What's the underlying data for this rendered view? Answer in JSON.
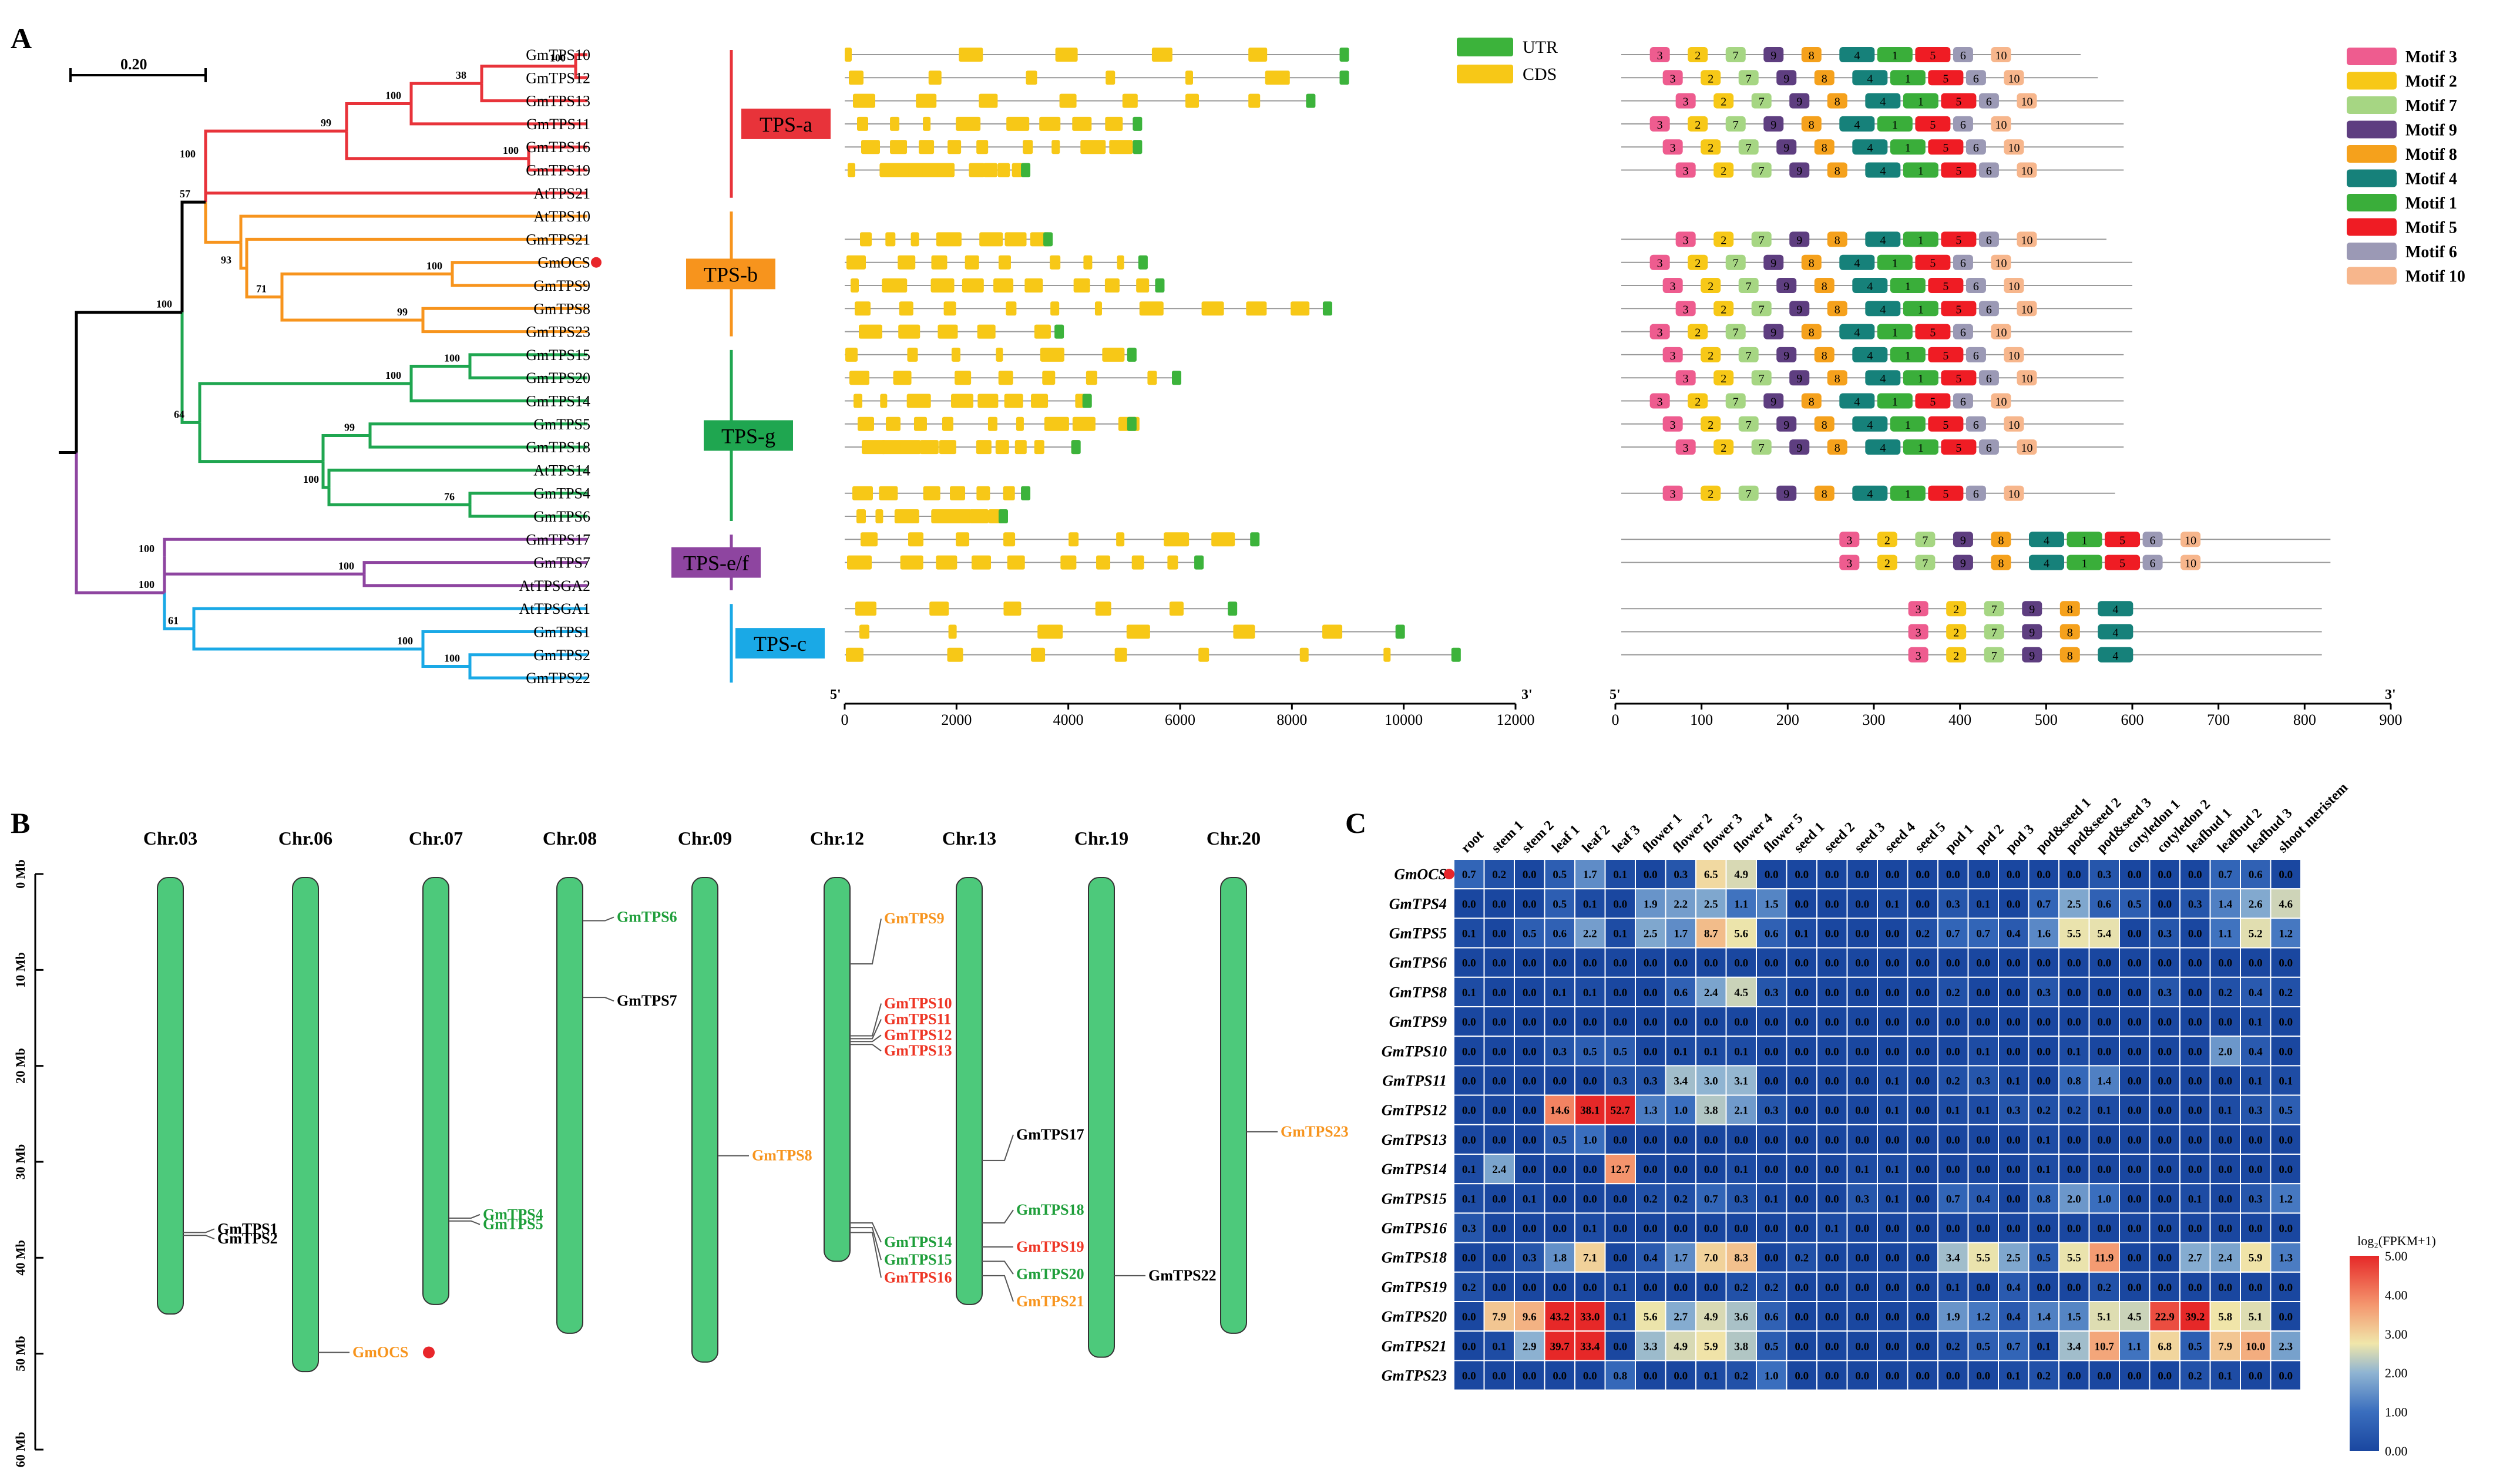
{
  "panels": {
    "a": "A",
    "b": "B",
    "c": "C"
  },
  "scale_bar": "0.20",
  "tree": {
    "leaves": [
      "GmTPS10",
      "GmTPS12",
      "GmTPS13",
      "GmTPS11",
      "GmTPS16",
      "GmTPS19",
      "AtTPS21",
      "AtTPS10",
      "GmTPS21",
      "GmOCS",
      "GmTPS9",
      "GmTPS8",
      "GmTPS23",
      "GmTPS15",
      "GmTPS20",
      "GmTPS14",
      "GmTPS5",
      "GmTPS18",
      "AtTPS14",
      "GmTPS4",
      "GmTPS6",
      "GmTPS17",
      "GmTPS7",
      "AtTPSGA2",
      "AtTPSGA1",
      "GmTPS1",
      "GmTPS2",
      "GmTPS22"
    ],
    "bootstraps": [
      "100",
      "38",
      "100",
      "99",
      "100",
      "100",
      "57",
      "93",
      "100",
      "71",
      "99",
      "100",
      "100",
      "100",
      "99",
      "64",
      "100",
      "76",
      "100",
      "100",
      "61",
      "100",
      "100",
      "100"
    ],
    "clades": [
      {
        "label": "TPS-a",
        "color": "#e8333a"
      },
      {
        "label": "TPS-b",
        "color": "#f7941d"
      },
      {
        "label": "TPS-g",
        "color": "#1fa650"
      },
      {
        "label": "TPS-e/f",
        "color": "#8e45a0"
      },
      {
        "label": "TPS-c",
        "color": "#1aa9e6"
      }
    ]
  },
  "gene_structure": {
    "legend": [
      {
        "label": "UTR",
        "color": "#3cb33b"
      },
      {
        "label": "CDS",
        "color": "#f7c817"
      }
    ],
    "axis_ticks": [
      "0",
      "2000",
      "4000",
      "6000",
      "8000",
      "10000",
      "12000"
    ],
    "end5": "5'",
    "end3": "3'"
  },
  "motifs": {
    "legend": [
      {
        "label": "Motif 3",
        "color": "#ee5c8f"
      },
      {
        "label": "Motif 2",
        "color": "#f7c817"
      },
      {
        "label": "Motif 7",
        "color": "#a6d683"
      },
      {
        "label": "Motif 9",
        "color": "#5e3e80"
      },
      {
        "label": "Motif 8",
        "color": "#f5a11c"
      },
      {
        "label": "Motif 4",
        "color": "#16817a"
      },
      {
        "label": "Motif 1",
        "color": "#3aae3a"
      },
      {
        "label": "Motif 5",
        "color": "#ef1c24"
      },
      {
        "label": "Motif 6",
        "color": "#9b99b5"
      },
      {
        "label": "Motif 10",
        "color": "#f7b68c"
      }
    ],
    "axis_ticks": [
      "0",
      "100",
      "200",
      "300",
      "400",
      "500",
      "600",
      "700",
      "800",
      "900"
    ],
    "end5": "5'",
    "end3": "3'"
  },
  "chromosomes": {
    "axis_ticks": [
      "0 Mb",
      "10 Mb",
      "20 Mb",
      "30 Mb",
      "40 Mb",
      "50 Mb",
      "60 Mb"
    ],
    "chrom_color": "#4dc97b",
    "list": [
      {
        "name": "Chr.03",
        "length_mb": 45.5,
        "genes": [
          {
            "name": "GmTPS1",
            "pos_mb": 37.0,
            "clade": "c"
          },
          {
            "name": "GmTPS2",
            "pos_mb": 37.3,
            "clade": "c"
          }
        ]
      },
      {
        "name": "Chr.06",
        "length_mb": 51.5,
        "genes": [
          {
            "name": "GmOCS",
            "pos_mb": 49.5,
            "clade": "b",
            "mark": true
          }
        ]
      },
      {
        "name": "Chr.07",
        "length_mb": 44.5,
        "genes": [
          {
            "name": "GmTPS4",
            "pos_mb": 35.5,
            "clade": "g"
          },
          {
            "name": "GmTPS5",
            "pos_mb": 35.8,
            "clade": "g"
          }
        ]
      },
      {
        "name": "Chr.08",
        "length_mb": 47.5,
        "genes": [
          {
            "name": "GmTPS6",
            "pos_mb": 4.5,
            "clade": "g"
          },
          {
            "name": "GmTPS7",
            "pos_mb": 12.5,
            "clade": "ef"
          }
        ]
      },
      {
        "name": "Chr.09",
        "length_mb": 50.5,
        "genes": [
          {
            "name": "GmTPS8",
            "pos_mb": 29.0,
            "clade": "b"
          }
        ]
      },
      {
        "name": "Chr.12",
        "length_mb": 40.0,
        "genes": [
          {
            "name": "GmTPS9",
            "pos_mb": 9.0,
            "clade": "b"
          },
          {
            "name": "GmTPS10",
            "pos_mb": 16.5,
            "clade": "a"
          },
          {
            "name": "GmTPS11",
            "pos_mb": 16.8,
            "clade": "a"
          },
          {
            "name": "GmTPS12",
            "pos_mb": 17.1,
            "clade": "a"
          },
          {
            "name": "GmTPS13",
            "pos_mb": 17.4,
            "clade": "a"
          },
          {
            "name": "GmTPS14",
            "pos_mb": 36.0,
            "clade": "g"
          },
          {
            "name": "GmTPS15",
            "pos_mb": 36.5,
            "clade": "g"
          },
          {
            "name": "GmTPS16",
            "pos_mb": 37.0,
            "clade": "a"
          }
        ]
      },
      {
        "name": "Chr.13",
        "length_mb": 44.5,
        "genes": [
          {
            "name": "GmTPS17",
            "pos_mb": 29.5,
            "clade": "ef"
          },
          {
            "name": "GmTPS18",
            "pos_mb": 36.0,
            "clade": "g"
          },
          {
            "name": "GmTPS19",
            "pos_mb": 38.5,
            "clade": "a"
          },
          {
            "name": "GmTPS20",
            "pos_mb": 40.0,
            "clade": "g"
          },
          {
            "name": "GmTPS21",
            "pos_mb": 41.5,
            "clade": "b"
          }
        ]
      },
      {
        "name": "Chr.19",
        "length_mb": 50.0,
        "genes": [
          {
            "name": "GmTPS22",
            "pos_mb": 41.5,
            "clade": "c"
          }
        ]
      },
      {
        "name": "Chr.20",
        "length_mb": 47.5,
        "genes": [
          {
            "name": "GmTPS23",
            "pos_mb": 26.5,
            "clade": "b"
          }
        ]
      }
    ]
  },
  "chart_data": {
    "type": "heatmap",
    "title": "",
    "columns": [
      "root",
      "stem 1",
      "stem 2",
      "leaf 1",
      "leaf 2",
      "leaf 3",
      "flower 1",
      "flower 2",
      "flower 3",
      "flower 4",
      "flower 5",
      "seed 1",
      "seed 2",
      "seed 3",
      "seed 4",
      "seed 5",
      "pod 1",
      "pod 2",
      "pod 3",
      "pod&seed 1",
      "pod&seed 2",
      "pod&seed 3",
      "cotyledon 1",
      "cotyledon 2",
      "leafbud 1",
      "leafbud 2",
      "leafbud 3",
      "shoot meristem"
    ],
    "rows": [
      "GmOCS",
      "GmTPS4",
      "GmTPS5",
      "GmTPS6",
      "GmTPS8",
      "GmTPS9",
      "GmTPS10",
      "GmTPS11",
      "GmTPS12",
      "GmTPS13",
      "GmTPS14",
      "GmTPS15",
      "GmTPS16",
      "GmTPS18",
      "GmTPS19",
      "GmTPS20",
      "GmTPS21",
      "GmTPS23"
    ],
    "values": [
      [
        0.7,
        0.2,
        0.0,
        0.5,
        1.7,
        0.1,
        0.0,
        0.3,
        6.5,
        4.9,
        0.0,
        0.0,
        0.0,
        0.0,
        0.0,
        0.0,
        0.0,
        0.0,
        0.0,
        0.0,
        0.0,
        0.3,
        0.0,
        0.0,
        0.0,
        0.7,
        0.6,
        0.0
      ],
      [
        0.0,
        0.0,
        0.0,
        0.5,
        0.1,
        0.0,
        1.9,
        2.2,
        2.5,
        1.1,
        1.5,
        0.0,
        0.0,
        0.0,
        0.1,
        0.0,
        0.3,
        0.1,
        0.0,
        0.7,
        2.5,
        0.6,
        0.5,
        0.0,
        0.3,
        1.4,
        2.6,
        4.6
      ],
      [
        0.1,
        0.0,
        0.5,
        0.6,
        2.2,
        0.1,
        2.5,
        1.7,
        8.7,
        5.6,
        0.6,
        0.1,
        0.0,
        0.0,
        0.0,
        0.2,
        0.7,
        0.7,
        0.4,
        1.6,
        5.5,
        5.4,
        0.0,
        0.3,
        0.0,
        1.1,
        5.2,
        1.2
      ],
      [
        0.0,
        0.0,
        0.0,
        0.0,
        0.0,
        0.0,
        0.0,
        0.0,
        0.0,
        0.0,
        0.0,
        0.0,
        0.0,
        0.0,
        0.0,
        0.0,
        0.0,
        0.0,
        0.0,
        0.0,
        0.0,
        0.0,
        0.0,
        0.0,
        0.0,
        0.0,
        0.0,
        0.0
      ],
      [
        0.1,
        0.0,
        0.0,
        0.1,
        0.1,
        0.0,
        0.0,
        0.6,
        2.4,
        4.5,
        0.3,
        0.0,
        0.0,
        0.0,
        0.0,
        0.0,
        0.2,
        0.0,
        0.0,
        0.3,
        0.0,
        0.0,
        0.0,
        0.3,
        0.0,
        0.2,
        0.4,
        0.2
      ],
      [
        0.0,
        0.0,
        0.0,
        0.0,
        0.0,
        0.0,
        0.0,
        0.0,
        0.0,
        0.0,
        0.0,
        0.0,
        0.0,
        0.0,
        0.0,
        0.0,
        0.0,
        0.0,
        0.0,
        0.0,
        0.0,
        0.0,
        0.0,
        0.0,
        0.0,
        0.0,
        0.1,
        0.0
      ],
      [
        0.0,
        0.0,
        0.0,
        0.3,
        0.5,
        0.5,
        0.0,
        0.1,
        0.1,
        0.1,
        0.0,
        0.0,
        0.0,
        0.0,
        0.0,
        0.0,
        0.0,
        0.1,
        0.0,
        0.0,
        0.1,
        0.0,
        0.0,
        0.0,
        0.0,
        2.0,
        0.4,
        0.0
      ],
      [
        0.0,
        0.0,
        0.0,
        0.0,
        0.0,
        0.3,
        0.3,
        3.4,
        3.0,
        3.1,
        0.0,
        0.0,
        0.0,
        0.0,
        0.1,
        0.0,
        0.2,
        0.3,
        0.1,
        0.0,
        0.8,
        1.4,
        0.0,
        0.0,
        0.0,
        0.0,
        0.1,
        0.1
      ],
      [
        0.0,
        0.0,
        0.0,
        14.6,
        38.1,
        52.7,
        1.3,
        1.0,
        3.8,
        2.1,
        0.3,
        0.0,
        0.0,
        0.0,
        0.1,
        0.0,
        0.1,
        0.1,
        0.3,
        0.2,
        0.2,
        0.1,
        0.0,
        0.0,
        0.0,
        0.1,
        0.3,
        0.5
      ],
      [
        0.0,
        0.0,
        0.0,
        0.5,
        1.0,
        0.0,
        0.0,
        0.0,
        0.0,
        0.0,
        0.0,
        0.0,
        0.0,
        0.0,
        0.0,
        0.0,
        0.0,
        0.0,
        0.0,
        0.1,
        0.0,
        0.0,
        0.0,
        0.0,
        0.0,
        0.0,
        0.0,
        0.0
      ],
      [
        0.1,
        2.4,
        0.0,
        0.0,
        0.0,
        12.7,
        0.0,
        0.0,
        0.0,
        0.1,
        0.0,
        0.0,
        0.0,
        0.1,
        0.1,
        0.0,
        0.0,
        0.0,
        0.0,
        0.1,
        0.0,
        0.0,
        0.0,
        0.0,
        0.0,
        0.0,
        0.0,
        0.0
      ],
      [
        0.1,
        0.0,
        0.1,
        0.0,
        0.0,
        0.0,
        0.2,
        0.2,
        0.7,
        0.3,
        0.1,
        0.0,
        0.0,
        0.3,
        0.1,
        0.0,
        0.7,
        0.4,
        0.0,
        0.8,
        2.0,
        1.0,
        0.0,
        0.0,
        0.1,
        0.0,
        0.3,
        1.2
      ],
      [
        0.3,
        0.0,
        0.0,
        0.0,
        0.1,
        0.0,
        0.0,
        0.0,
        0.0,
        0.0,
        0.0,
        0.0,
        0.1,
        0.0,
        0.0,
        0.0,
        0.0,
        0.0,
        0.0,
        0.0,
        0.0,
        0.0,
        0.0,
        0.0,
        0.0,
        0.0,
        0.0,
        0.0
      ],
      [
        0.0,
        0.0,
        0.3,
        1.8,
        7.1,
        0.0,
        0.4,
        1.7,
        7.0,
        8.3,
        0.0,
        0.2,
        0.0,
        0.0,
        0.0,
        0.0,
        3.4,
        5.5,
        2.5,
        0.5,
        5.5,
        11.9,
        0.0,
        0.0,
        2.7,
        2.4,
        5.9,
        1.3
      ],
      [
        0.2,
        0.0,
        0.0,
        0.0,
        0.0,
        0.1,
        0.0,
        0.0,
        0.0,
        0.2,
        0.2,
        0.0,
        0.0,
        0.0,
        0.0,
        0.0,
        0.1,
        0.0,
        0.4,
        0.0,
        0.0,
        0.2,
        0.0,
        0.0,
        0.0,
        0.0,
        0.0,
        0.0
      ],
      [
        0.0,
        7.9,
        9.6,
        43.2,
        33.0,
        0.1,
        5.6,
        2.7,
        4.9,
        3.6,
        0.6,
        0.0,
        0.0,
        0.0,
        0.0,
        0.0,
        1.9,
        1.2,
        0.4,
        1.4,
        1.5,
        5.1,
        4.5,
        22.9,
        39.2,
        5.8,
        5.1,
        0.0
      ],
      [
        0.0,
        0.1,
        2.9,
        39.7,
        33.4,
        0.0,
        3.3,
        4.9,
        5.9,
        3.8,
        0.5,
        0.0,
        0.0,
        0.0,
        0.0,
        0.0,
        0.2,
        0.5,
        0.7,
        0.1,
        3.4,
        10.7,
        1.1,
        6.8,
        0.5,
        7.9,
        10.0,
        2.3
      ],
      [
        0.0,
        0.0,
        0.0,
        0.0,
        0.0,
        0.8,
        0.0,
        0.0,
        0.1,
        0.2,
        1.0,
        0.0,
        0.0,
        0.0,
        0.0,
        0.0,
        0.0,
        0.0,
        0.1,
        0.2,
        0.0,
        0.0,
        0.0,
        0.0,
        0.2,
        0.1,
        0.0,
        0.0
      ]
    ],
    "colorbar": {
      "title": "log₂(FPKM+1)",
      "ticks": [
        "5.00",
        "4.00",
        "3.00",
        "2.00",
        "1.00",
        "0.00"
      ],
      "min": 0,
      "max": 5
    }
  }
}
